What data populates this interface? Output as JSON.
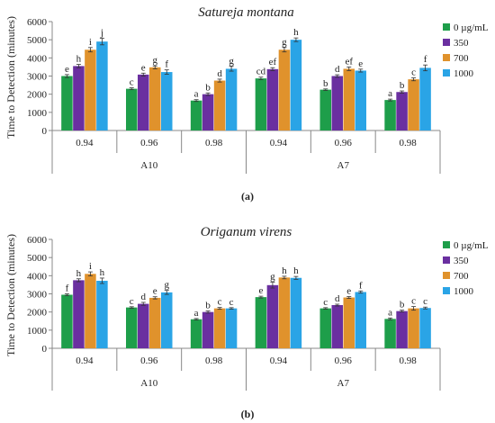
{
  "legend": {
    "entries": [
      "0 µg/mL",
      "350",
      "700",
      "1000"
    ],
    "colors": [
      "#1e9e4a",
      "#6a2fa0",
      "#e0922c",
      "#2aa4e6"
    ]
  },
  "chart_data": [
    {
      "type": "bar",
      "panel_label": "(a)",
      "title": "Satureja montana",
      "ylabel": "Time to Detection (minutes)",
      "ylim": [
        0,
        6000
      ],
      "yticks": [
        0,
        1000,
        2000,
        3000,
        4000,
        5000,
        6000
      ],
      "categories": [
        "0.94",
        "0.96",
        "0.98",
        "0.94",
        "0.96",
        "0.98"
      ],
      "groups": [
        {
          "label": "A10",
          "span": [
            0,
            2
          ]
        },
        {
          "label": "A7",
          "span": [
            3,
            5
          ]
        }
      ],
      "series": [
        {
          "name": "0 µg/mL",
          "values": [
            3000,
            2300,
            1650,
            2870,
            2250,
            1680
          ],
          "errors": [
            80,
            50,
            50,
            70,
            40,
            50
          ],
          "letters": [
            "e",
            "c",
            "a",
            "cd",
            "b",
            "a"
          ]
        },
        {
          "name": "350",
          "values": [
            3550,
            3080,
            2000,
            3380,
            3000,
            2120
          ],
          "errors": [
            90,
            80,
            70,
            80,
            70,
            60
          ],
          "letters": [
            "h",
            "e",
            "b",
            "ef",
            "d",
            "b"
          ]
        },
        {
          "name": "700",
          "values": [
            4450,
            3480,
            2750,
            4450,
            3400,
            2820
          ],
          "errors": [
            120,
            80,
            80,
            120,
            100,
            80
          ],
          "letters": [
            "i",
            "g",
            "d",
            "g",
            "ef",
            "c"
          ]
        },
        {
          "name": "1000",
          "values": [
            4900,
            3220,
            3400,
            5000,
            3300,
            3450
          ],
          "errors": [
            180,
            120,
            130,
            100,
            80,
            160
          ],
          "letters": [
            "j",
            "f",
            "g",
            "h",
            "e",
            "f"
          ]
        }
      ]
    },
    {
      "type": "bar",
      "panel_label": "(b)",
      "title": "Origanum virens",
      "ylabel": "Time to Detection (minutes)",
      "ylim": [
        0,
        6000
      ],
      "yticks": [
        0,
        1000,
        2000,
        3000,
        4000,
        5000,
        6000
      ],
      "categories": [
        "0.94",
        "0.96",
        "0.98",
        "0.94",
        "0.96",
        "0.98"
      ],
      "groups": [
        {
          "label": "A10",
          "span": [
            0,
            2
          ]
        },
        {
          "label": "A7",
          "span": [
            3,
            5
          ]
        }
      ],
      "series": [
        {
          "name": "0 µg/mL",
          "values": [
            2950,
            2250,
            1600,
            2820,
            2200,
            1620
          ],
          "errors": [
            50,
            40,
            40,
            50,
            40,
            50
          ],
          "letters": [
            "f",
            "c",
            "a",
            "e",
            "c",
            "a"
          ]
        },
        {
          "name": "350",
          "values": [
            3750,
            2450,
            2000,
            3480,
            2380,
            2050
          ],
          "errors": [
            80,
            80,
            60,
            160,
            50,
            50
          ],
          "letters": [
            "h",
            "d",
            "b",
            "g",
            "d",
            "b"
          ]
        },
        {
          "name": "700",
          "values": [
            4100,
            2780,
            2200,
            3900,
            2800,
            2200
          ],
          "errors": [
            110,
            60,
            50,
            70,
            50,
            100
          ],
          "letters": [
            "i",
            "e",
            "c",
            "h",
            "e",
            "c"
          ]
        },
        {
          "name": "1000",
          "values": [
            3720,
            3080,
            2200,
            3880,
            3100,
            2220
          ],
          "errors": [
            150,
            110,
            40,
            80,
            60,
            50
          ],
          "letters": [
            "h",
            "g",
            "c",
            "h",
            "f",
            "c"
          ]
        }
      ]
    }
  ]
}
